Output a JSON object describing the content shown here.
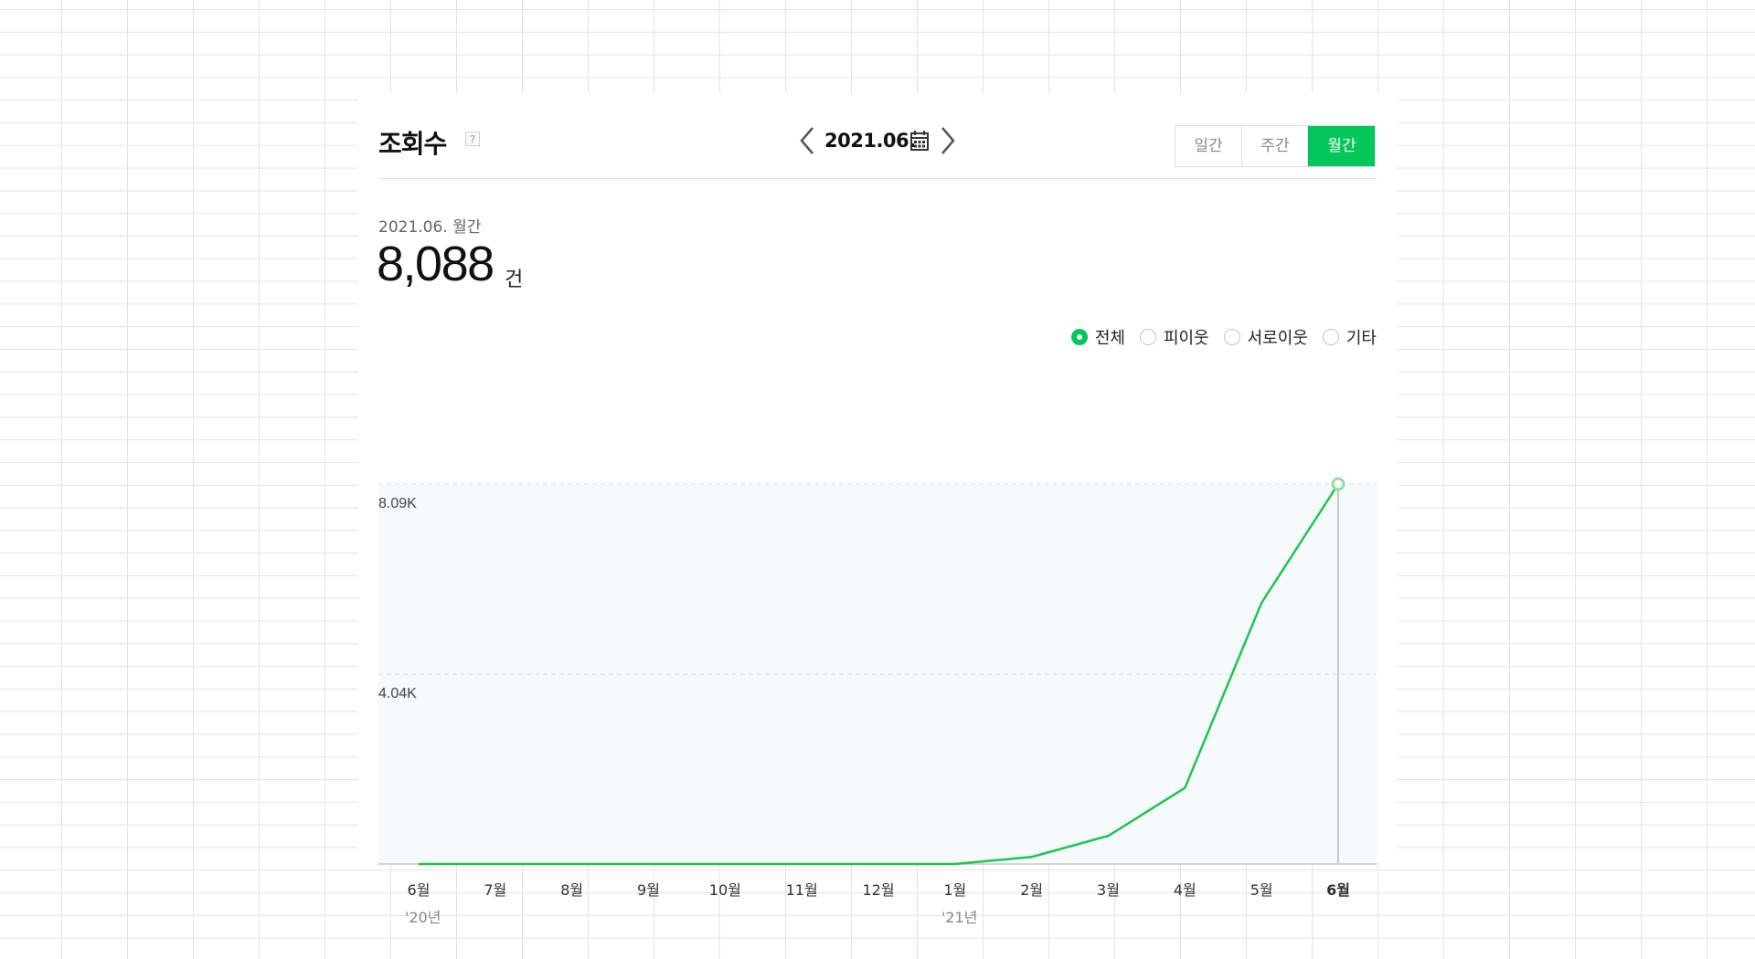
{
  "header": {
    "title": "조회수",
    "help_icon": "question-icon",
    "date_label": "2021.06.",
    "prev_icon": "chevron-left-icon",
    "next_icon": "chevron-right-icon",
    "calendar_icon": "calendar-icon"
  },
  "period_tabs": [
    {
      "label": "일간",
      "active": false
    },
    {
      "label": "주간",
      "active": false
    },
    {
      "label": "월간",
      "active": true
    }
  ],
  "summary": {
    "period": "2021.06. 월간",
    "count": "8,088",
    "unit": "건"
  },
  "filters": [
    {
      "label": "전체",
      "checked": true
    },
    {
      "label": "피이웃",
      "checked": false
    },
    {
      "label": "서로이웃",
      "checked": false
    },
    {
      "label": "기타",
      "checked": false
    }
  ],
  "colors": {
    "accent": "#03c75a",
    "line": "#1ec64a",
    "plot_background": "#f6fafd"
  },
  "chart_data": {
    "type": "line",
    "categories": [
      "6월",
      "7월",
      "8월",
      "9월",
      "10월",
      "11월",
      "12월",
      "1월",
      "2월",
      "3월",
      "4월",
      "5월",
      "6월"
    ],
    "year_labels": [
      {
        "index": 0,
        "label": "'20년"
      },
      {
        "index": 7,
        "label": "'21년"
      }
    ],
    "values": [
      0,
      0,
      0,
      0,
      0,
      0,
      0,
      0,
      150,
      600,
      1620,
      5560,
      8088
    ],
    "yticks": [
      4040,
      8090
    ],
    "ytick_labels": [
      "4.04K",
      "8.09K"
    ],
    "ylim": [
      0,
      8088
    ],
    "highlight_index": 12,
    "grid": true
  }
}
